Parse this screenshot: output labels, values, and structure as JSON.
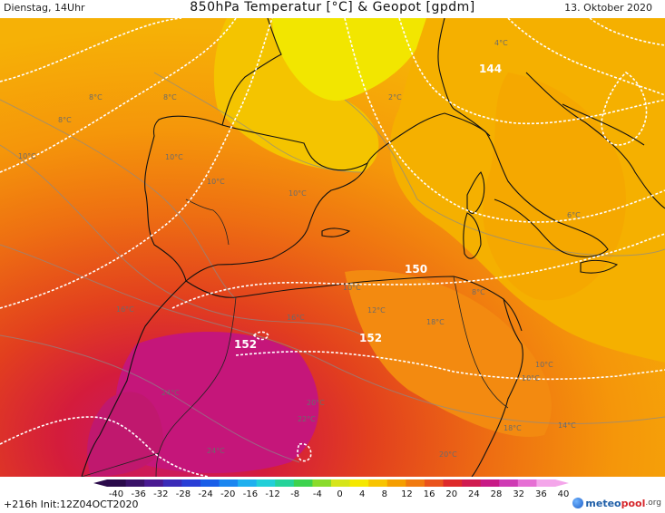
{
  "header": {
    "left": "Dienstag, 14Uhr",
    "title": "850hPa Temperatur [°C] & Geopot [gpdm]",
    "date": "13. Oktober 2020"
  },
  "footer": {
    "run": "+216h  Init:12Z04OCT2020",
    "logo_main": "meteo",
    "logo_accent": "pool",
    "logo_suffix": ".org"
  },
  "colorbar": {
    "ticks": [
      "-40",
      "-36",
      "-32",
      "-28",
      "-24",
      "-20",
      "-16",
      "-12",
      "-8",
      "-4",
      "0",
      "4",
      "8",
      "12",
      "16",
      "20",
      "24",
      "28",
      "32",
      "36",
      "40"
    ],
    "colors": [
      "#2a0a4a",
      "#3a1268",
      "#4a1a92",
      "#3b2bb8",
      "#2a3ed6",
      "#1a5ee8",
      "#1b86f0",
      "#1fb0ef",
      "#22cfd8",
      "#26d39a",
      "#3ed24e",
      "#8adb2c",
      "#d6e51a",
      "#f5e800",
      "#f8c400",
      "#f59e00",
      "#f17a10",
      "#ea531c",
      "#de2a2a",
      "#d01c50",
      "#c81a86",
      "#cf3bb4",
      "#e66fd4",
      "#f4a6ea"
    ]
  },
  "map": {
    "geopot_labels": [
      "144",
      "150",
      "152",
      "152"
    ],
    "temp_labels": [
      "8°C",
      "8°C",
      "8°C",
      "10°C",
      "10°C",
      "10°C",
      "10°C",
      "10°C",
      "10°C",
      "12°C",
      "14°C",
      "16°C",
      "16°C",
      "18°C",
      "18°C",
      "20°C",
      "20°C",
      "22°C",
      "24°C",
      "24°C",
      "2°C",
      "4°C",
      "6°C",
      "8°C",
      "10°C"
    ]
  }
}
